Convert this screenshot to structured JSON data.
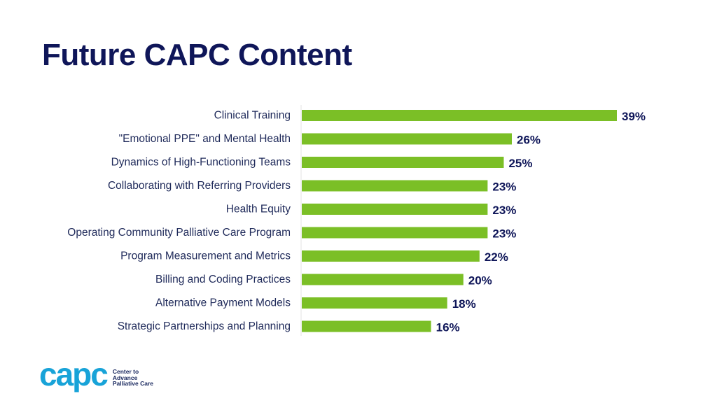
{
  "title": "Future CAPC Content",
  "chart_data": {
    "type": "bar",
    "orientation": "horizontal",
    "categories": [
      "Clinical Training",
      "\"Emotional PPE\" and Mental Health",
      "Dynamics of High-Functioning Teams",
      "Collaborating with Referring Providers",
      "Health Equity",
      "Operating Community Palliative Care Program",
      "Program Measurement and Metrics",
      "Billing and Coding Practices",
      "Alternative Payment Models",
      "Strategic Partnerships and Planning"
    ],
    "values": [
      39,
      26,
      25,
      23,
      23,
      23,
      22,
      20,
      18,
      16
    ],
    "value_labels": [
      "39%",
      "26%",
      "25%",
      "23%",
      "23%",
      "23%",
      "22%",
      "20%",
      "18%",
      "16%"
    ],
    "xlim": [
      0,
      39
    ],
    "grid": false,
    "legend": "none",
    "bar_color": "#7bbf26",
    "label_color": "#0f1659"
  },
  "logo": {
    "word": "capc",
    "tagline": [
      "Center to",
      "Advance",
      "Palliative Care"
    ],
    "color": "#18a3d8"
  }
}
